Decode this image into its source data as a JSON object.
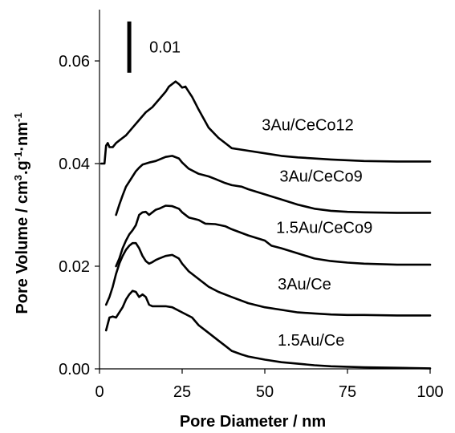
{
  "chart_data": {
    "type": "line",
    "title": "",
    "xlabel": "Pore Diameter / nm",
    "ylabel_parts": [
      "Pore Volume / cm",
      "3",
      ".g",
      "-1",
      "·nm",
      "-1"
    ],
    "xlim": [
      0,
      100
    ],
    "ylim": [
      0,
      0.07
    ],
    "x_ticks": [
      0,
      25,
      50,
      75,
      100
    ],
    "x_tick_labels": [
      "0",
      "25",
      "50",
      "75",
      "100"
    ],
    "y_ticks": [
      0,
      0.02,
      0.04,
      0.06
    ],
    "y_tick_labels": [
      "0.00",
      "0.02",
      "0.04",
      "0.06"
    ],
    "grid": false,
    "scale_bar": {
      "label": "0.01",
      "x": 9,
      "y_from": 0.0577,
      "y_to": 0.0677
    },
    "series": [
      {
        "name": "1.5Au/Ce",
        "x": [
          2,
          3,
          4,
          5,
          6,
          7,
          8,
          9,
          10,
          11,
          12,
          13,
          14,
          15,
          16,
          18,
          20,
          22,
          25,
          28,
          30,
          33,
          36,
          38,
          40,
          43,
          45,
          50,
          55,
          60,
          65,
          70,
          75,
          80,
          90,
          100
        ],
        "y": [
          0.0075,
          0.01,
          0.0102,
          0.01,
          0.011,
          0.012,
          0.0135,
          0.0145,
          0.0152,
          0.015,
          0.014,
          0.0145,
          0.014,
          0.0125,
          0.0122,
          0.0122,
          0.0122,
          0.012,
          0.011,
          0.01,
          0.0085,
          0.007,
          0.0055,
          0.0045,
          0.0035,
          0.0028,
          0.0024,
          0.0018,
          0.0013,
          0.001,
          0.0007,
          0.0005,
          0.0004,
          0.0003,
          0.0002,
          0.0001
        ],
        "label_x": 64,
        "label_y": 0.0045
      },
      {
        "name": "3Au/Ce",
        "x": [
          2,
          3,
          4,
          5,
          6,
          7,
          8,
          9,
          10,
          11,
          12,
          13,
          14,
          15,
          16,
          17,
          18,
          20,
          22,
          24,
          25,
          27,
          30,
          33,
          36,
          40,
          45,
          50,
          55,
          60,
          65,
          70,
          75,
          80,
          90,
          100
        ],
        "y": [
          0.0125,
          0.014,
          0.016,
          0.0185,
          0.0205,
          0.022,
          0.0232,
          0.024,
          0.0245,
          0.0245,
          0.0235,
          0.022,
          0.021,
          0.0205,
          0.0208,
          0.0212,
          0.0215,
          0.022,
          0.0222,
          0.0215,
          0.0205,
          0.019,
          0.0175,
          0.016,
          0.015,
          0.014,
          0.0128,
          0.012,
          0.0115,
          0.011,
          0.0108,
          0.0106,
          0.0105,
          0.0105,
          0.0104,
          0.0104
        ],
        "label_x": 62,
        "label_y": 0.0155
      },
      {
        "name": "1.5Au/CeCo9",
        "x": [
          5,
          6,
          7,
          8,
          9,
          10,
          11,
          12,
          13,
          14,
          15,
          16,
          17,
          18,
          20,
          22,
          24,
          25,
          27,
          30,
          32,
          35,
          38,
          40,
          45,
          50,
          52,
          55,
          60,
          65,
          70,
          75,
          80,
          90,
          100
        ],
        "y": [
          0.02,
          0.0215,
          0.0235,
          0.025,
          0.0262,
          0.027,
          0.028,
          0.03,
          0.0305,
          0.0306,
          0.03,
          0.0305,
          0.031,
          0.0312,
          0.0318,
          0.0317,
          0.0312,
          0.0305,
          0.0295,
          0.029,
          0.0283,
          0.0282,
          0.0278,
          0.0272,
          0.026,
          0.025,
          0.024,
          0.0235,
          0.0225,
          0.0215,
          0.021,
          0.0207,
          0.0205,
          0.0203,
          0.0203
        ],
        "label_x": 68,
        "label_y": 0.0265
      },
      {
        "name": "3Au/CeCo9",
        "x": [
          5,
          6,
          7,
          8,
          9,
          10,
          11,
          12,
          13,
          14,
          15,
          17,
          20,
          22,
          24,
          25,
          27,
          30,
          33,
          35,
          38,
          40,
          43,
          45,
          50,
          55,
          60,
          65,
          70,
          75,
          80,
          90,
          100
        ],
        "y": [
          0.03,
          0.032,
          0.0338,
          0.0355,
          0.0365,
          0.0375,
          0.0385,
          0.0392,
          0.0398,
          0.04,
          0.0402,
          0.0405,
          0.0413,
          0.0415,
          0.041,
          0.0402,
          0.039,
          0.038,
          0.0375,
          0.037,
          0.0362,
          0.0358,
          0.0355,
          0.035,
          0.034,
          0.033,
          0.032,
          0.0312,
          0.0308,
          0.0306,
          0.0305,
          0.0304,
          0.0304
        ],
        "label_x": 67,
        "label_y": 0.0365
      },
      {
        "name": "3Au/CeCo12",
        "x": [
          0.5,
          1.5,
          2,
          2.5,
          3,
          4,
          5,
          6,
          7,
          8,
          10,
          12,
          14,
          16,
          18,
          20,
          21,
          22,
          23,
          24,
          25,
          26,
          27,
          28,
          30,
          33,
          36,
          38,
          40,
          45,
          50,
          55,
          60,
          70,
          80,
          90,
          100
        ],
        "y": [
          0.04,
          0.04,
          0.0435,
          0.044,
          0.0432,
          0.0432,
          0.044,
          0.0445,
          0.045,
          0.0455,
          0.047,
          0.0485,
          0.05,
          0.051,
          0.0525,
          0.054,
          0.055,
          0.0555,
          0.056,
          0.0555,
          0.0548,
          0.055,
          0.054,
          0.053,
          0.0505,
          0.047,
          0.045,
          0.044,
          0.043,
          0.0425,
          0.042,
          0.0415,
          0.0412,
          0.0408,
          0.0405,
          0.0404,
          0.0404
        ],
        "label_x": 63,
        "label_y": 0.0465
      }
    ]
  }
}
